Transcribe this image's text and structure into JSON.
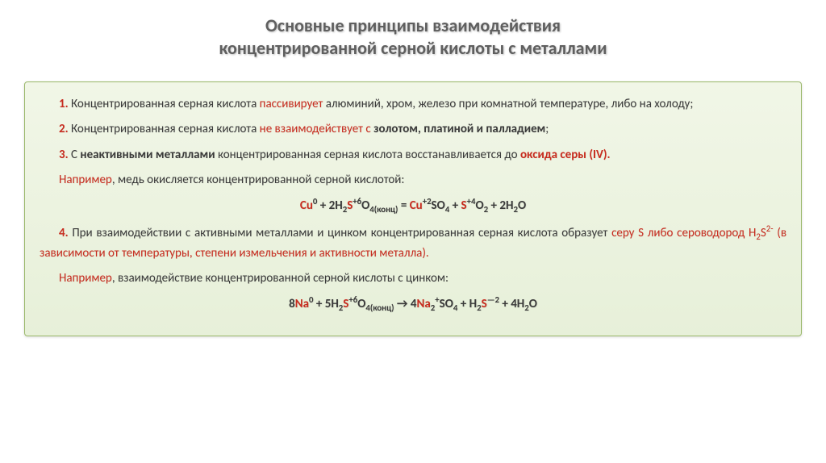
{
  "colors": {
    "background": "#ffffff",
    "title_text": "#5f5f5f",
    "body_text": "#3a3a3a",
    "accent_red": "#c82c1f",
    "box_bg_top": "#f1f6e7",
    "box_bg_bottom": "#e7f0d9",
    "box_border": "#9ab86a"
  },
  "typography": {
    "title_fontsize": 22,
    "body_fontsize": 15,
    "title_weight": "bold"
  },
  "title": {
    "line1": "Основные принципы взаимодействия",
    "line2": "концентрированной серной кислоты с металлами"
  },
  "items": {
    "p1_num": "1.",
    "p1_a": " Концентрированная серная кислота ",
    "p1_red": "пассивирует",
    "p1_b": " алюминий, хром, железо при комнатной температуре, либо на холоду;",
    "p2_num": "2.",
    "p2_a": " Концентрированная серная кислота ",
    "p2_red": "не взаимодействует с",
    "p2_b": " золотом, платиной и палладием",
    "p2_c": ";",
    "p3_num": "3.",
    "p3_a": " С ",
    "p3_bold1": "неактивными металлами",
    "p3_b": " концентрированная серная кислота восстанавливается до ",
    "p3_red": "оксида серы (IV).",
    "p3_ex_label": "Например",
    "p3_ex_text": ", медь окисляется концентрированной серной кислотой:",
    "p4_num": "4.",
    "p4_a": " При взаимодействии с активными металлами и цинком концентрированная серная кислота образует ",
    "p4_red": "серу S либо сероводород H",
    "p4_red2": " (в зависимости от температуры, степени измельчения и активности металла).",
    "p4_ex_label": "Например",
    "p4_ex_text": ", взаимодействие концентрированной серной кислоты с цинком:"
  },
  "equations": {
    "eq1": {
      "t1": "Cu",
      "s1": "0",
      "t2": " + 2H",
      "s2": "2",
      "t3": "S",
      "s3": "+6",
      "t4": "O",
      "s4": "4(конц)",
      "t5": " = ",
      "t6": "Cu",
      "s6": "+2",
      "t7": "SO",
      "s7": "4",
      "t8": " + ",
      "t9": "S",
      "s9": "+4",
      "t10": "O",
      "s10": "2",
      "t11": " + 2H",
      "s11": "2",
      "t12": "O"
    },
    "eq2": {
      "t1": "8Na",
      "s1": "0",
      "t2": " + 5H",
      "s2": "2",
      "t3": "S",
      "s3": "+6",
      "t4": "O",
      "s4": "4(конц)",
      "t5": " → ",
      "t6": "4Na",
      "s6": "2",
      "t6b": "",
      "s6b": "+",
      "t7": "SO",
      "s7": "4",
      "t8": " + H",
      "s8": "2",
      "t9": "S",
      "s9": "—2",
      "t10": " + 4H",
      "s10": "2",
      "t11": "O"
    },
    "h2s_sub": "2",
    "h2s_sup": "2-"
  }
}
